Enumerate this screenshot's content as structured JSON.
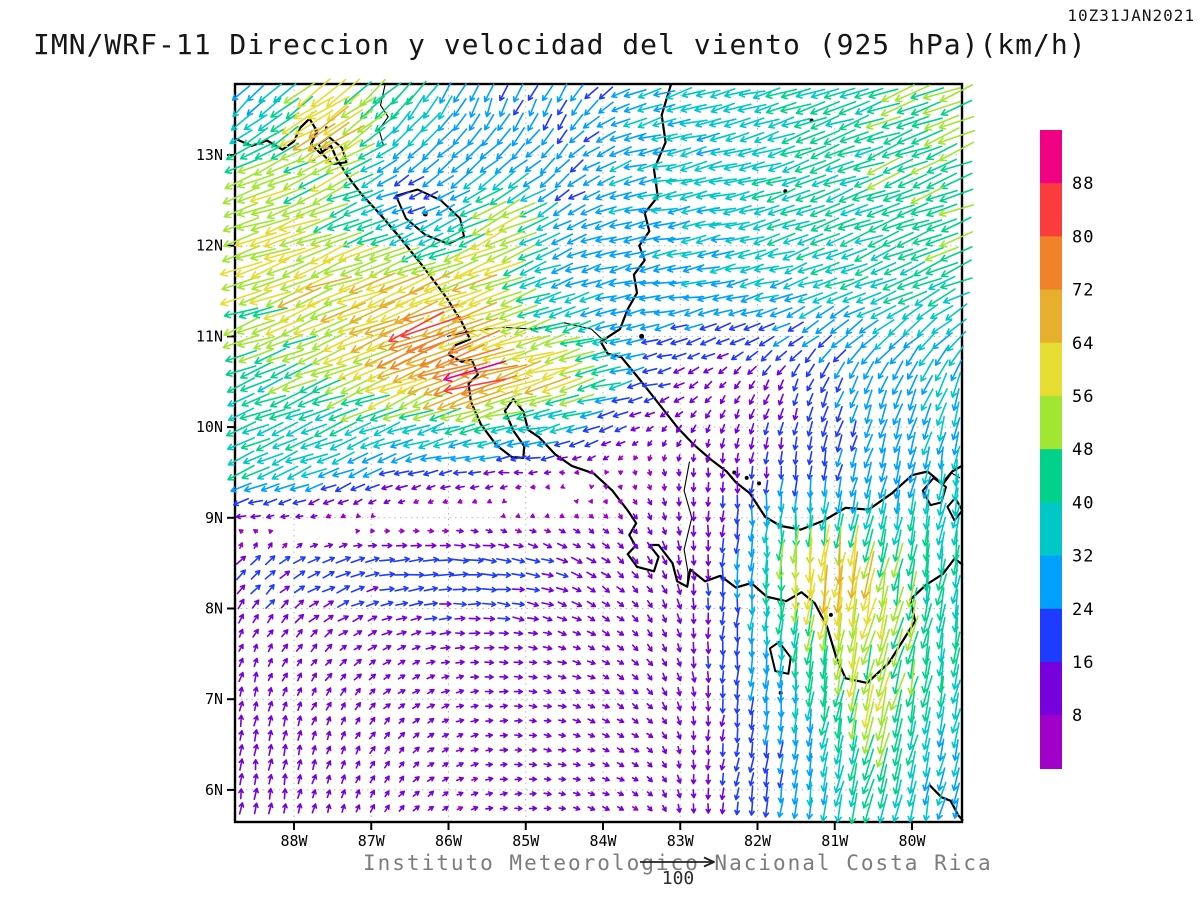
{
  "header": {
    "title": "IMN/WRF-11 Direccion y velocidad del viento (925 hPa)(km/h)",
    "timestamp": "10Z31JAN2021"
  },
  "footer": {
    "credit": "Instituto Meteorologico Nacional Costa Rica",
    "reference_arrow_label": "100",
    "reference_arrow_kmh": 100
  },
  "axes": {
    "lat_labels": [
      "13N",
      "12N",
      "11N",
      "10N",
      "9N",
      "8N",
      "7N",
      "6N"
    ],
    "lat_values": [
      13,
      12,
      11,
      10,
      9,
      8,
      7,
      6
    ],
    "lon_labels": [
      "88W",
      "87W",
      "86W",
      "85W",
      "84W",
      "83W",
      "82W",
      "81W",
      "80W"
    ],
    "lon_values": [
      88,
      87,
      86,
      85,
      84,
      83,
      82,
      81,
      80
    ]
  },
  "colorbar": {
    "position": "right",
    "labels": [
      "88",
      "80",
      "72",
      "64",
      "56",
      "48",
      "40",
      "32",
      "24",
      "16",
      "8"
    ],
    "colors_top_to_bottom": [
      "#F00082",
      "#FA3C3C",
      "#F08228",
      "#E6AF2D",
      "#E6DC32",
      "#A0E632",
      "#00D28C",
      "#00C8C8",
      "#00A0FF",
      "#1E3CFF",
      "#7800DC",
      "#A000C8"
    ]
  },
  "chart_data": {
    "type": "vector_field",
    "variable": "wind direction and speed",
    "model": "IMN/WRF-11",
    "level_hPa": 925,
    "units": "km/h",
    "valid_time": "10Z31JAN2021",
    "extent": {
      "lon_w": [
        88.8,
        79.3
      ],
      "lat_n": [
        5.6,
        13.8
      ]
    },
    "grid": {
      "lon_w": [
        88.5,
        87.5,
        86.5,
        85.5,
        84.5,
        83.5,
        82.5,
        81.5,
        80.5,
        79.5
      ],
      "lat_n": [
        13.5,
        12.5,
        11.5,
        10.5,
        9.5,
        8.5,
        7.5,
        6.5,
        5.5
      ],
      "u_kmh": [
        [
          -24,
          -48,
          -26,
          -10,
          -12,
          -30,
          -34,
          -38,
          -42,
          -46
        ],
        [
          -52,
          -44,
          -16,
          -34,
          -22,
          -32,
          -35,
          -38,
          -41,
          -44
        ],
        [
          -52,
          -58,
          -62,
          -56,
          -30,
          -27,
          -31,
          -33,
          -36,
          -38
        ],
        [
          -38,
          -46,
          -58,
          -66,
          -58,
          -20,
          -8,
          -7,
          -11,
          -13
        ],
        [
          -36,
          -28,
          -20,
          -16,
          -6,
          2,
          -1,
          -2,
          -7,
          -6
        ],
        [
          13,
          19,
          22,
          22,
          15,
          7,
          -1,
          -3,
          -11,
          -6
        ],
        [
          4,
          8,
          10,
          11,
          10,
          7,
          -1,
          -4,
          -13,
          -7
        ],
        [
          2,
          4,
          7,
          9,
          9,
          8,
          -2,
          -4,
          -12,
          -7
        ],
        [
          2,
          3,
          6,
          8,
          9,
          7,
          -2,
          -4,
          -10,
          -6
        ]
      ],
      "v_kmh": [
        [
          -24,
          -32,
          -30,
          -24,
          -22,
          -10,
          -8,
          -13,
          -16,
          -18
        ],
        [
          -18,
          -18,
          -6,
          -18,
          -14,
          -6,
          -8,
          -13,
          -15,
          -17
        ],
        [
          -18,
          -22,
          -24,
          -20,
          -9,
          -5,
          -6,
          -11,
          -15,
          -17
        ],
        [
          -15,
          -18,
          -24,
          -18,
          -16,
          -4,
          -8,
          -16,
          -24,
          -30
        ],
        [
          -15,
          -12,
          -5,
          -2,
          0,
          -6,
          -13,
          -18,
          -26,
          -34
        ],
        [
          13,
          7,
          2,
          -2,
          -6,
          -8,
          -17,
          -54,
          -52,
          -38
        ],
        [
          10,
          8,
          4,
          0,
          -3,
          -7,
          -17,
          -40,
          -50,
          -40
        ],
        [
          15,
          11,
          7,
          2,
          -2,
          -5,
          -15,
          -27,
          -44,
          -31
        ],
        [
          14,
          11,
          7,
          2,
          -1,
          -5,
          -14,
          -25,
          -40,
          -28
        ]
      ]
    },
    "hotspots": [
      {
        "lon_w": 85.7,
        "lat_n": 10.55,
        "boost_kmh": 26,
        "radius_deg": 0.3
      },
      {
        "lon_w": 86.35,
        "lat_n": 11.0,
        "boost_kmh": 20,
        "radius_deg": 0.3
      },
      {
        "lon_w": 85.25,
        "lat_n": 12.2,
        "boost_kmh": 16,
        "radius_deg": 0.4
      },
      {
        "lon_w": 87.6,
        "lat_n": 13.25,
        "boost_kmh": 14,
        "radius_deg": 0.35
      },
      {
        "lon_w": 80.95,
        "lat_n": 8.25,
        "boost_kmh": 16,
        "radius_deg": 0.45
      },
      {
        "lon_w": 80.55,
        "lat_n": 6.9,
        "boost_kmh": 8,
        "radius_deg": 0.5
      }
    ],
    "speed_colors": {
      "thresholds_kmh": [
        8,
        16,
        24,
        32,
        40,
        48,
        56,
        64,
        72,
        80,
        88
      ],
      "colors_low_to_high": [
        "#A000C8",
        "#7800DC",
        "#1E3CFF",
        "#00A0FF",
        "#00C8C8",
        "#00D28C",
        "#A0E632",
        "#E6DC32",
        "#E6AF2D",
        "#F08228",
        "#FA3C3C",
        "#F00082"
      ]
    }
  },
  "basemap": {
    "coastlines": [
      [
        [
          88.76,
          13.18
        ],
        [
          88.55,
          13.1
        ],
        [
          88.35,
          13.16
        ],
        [
          88.15,
          13.06
        ],
        [
          88.0,
          13.15
        ],
        [
          87.92,
          13.3
        ],
        [
          87.8,
          13.4
        ],
        [
          87.7,
          13.26
        ],
        [
          87.78,
          13.12
        ],
        [
          87.66,
          13.02
        ],
        [
          87.52,
          13.1
        ],
        [
          87.45,
          12.96
        ],
        [
          87.3,
          12.76
        ],
        [
          87.12,
          12.56
        ],
        [
          86.9,
          12.36
        ],
        [
          86.62,
          12.08
        ],
        [
          86.32,
          11.76
        ],
        [
          86.02,
          11.42
        ],
        [
          85.83,
          11.16
        ],
        [
          85.72,
          10.97
        ],
        [
          85.92,
          10.9
        ],
        [
          86.0,
          10.8
        ],
        [
          85.83,
          10.72
        ],
        [
          85.7,
          10.74
        ],
        [
          85.62,
          10.58
        ],
        [
          85.74,
          10.48
        ],
        [
          85.71,
          10.28
        ],
        [
          85.58,
          10.03
        ],
        [
          85.38,
          9.8
        ],
        [
          85.18,
          9.67
        ],
        [
          85.03,
          9.66
        ],
        [
          85.02,
          9.79
        ],
        [
          85.16,
          9.96
        ],
        [
          85.27,
          10.18
        ],
        [
          85.16,
          10.31
        ],
        [
          85.03,
          10.17
        ],
        [
          84.97,
          9.97
        ],
        [
          84.83,
          9.89
        ],
        [
          84.62,
          9.7
        ],
        [
          84.4,
          9.57
        ],
        [
          84.12,
          9.49
        ],
        [
          83.88,
          9.3
        ],
        [
          83.68,
          9.08
        ],
        [
          83.57,
          8.94
        ],
        [
          83.66,
          8.81
        ],
        [
          83.58,
          8.69
        ],
        [
          83.68,
          8.6
        ],
        [
          83.56,
          8.46
        ],
        [
          83.34,
          8.41
        ],
        [
          83.28,
          8.57
        ],
        [
          83.4,
          8.7
        ],
        [
          83.28,
          8.7
        ],
        [
          83.1,
          8.5
        ],
        [
          83.04,
          8.3
        ],
        [
          82.91,
          8.24
        ],
        [
          82.87,
          8.43
        ],
        [
          82.68,
          8.3
        ],
        [
          82.48,
          8.36
        ],
        [
          82.28,
          8.23
        ],
        [
          82.08,
          8.28
        ],
        [
          81.88,
          8.13
        ],
        [
          81.63,
          8.08
        ],
        [
          81.43,
          8.18
        ],
        [
          81.26,
          8.06
        ],
        [
          81.1,
          7.8
        ],
        [
          80.98,
          7.46
        ],
        [
          80.86,
          7.23
        ],
        [
          80.58,
          7.18
        ],
        [
          80.3,
          7.4
        ],
        [
          80.13,
          7.63
        ],
        [
          79.96,
          7.86
        ],
        [
          80.02,
          8.1
        ],
        [
          79.82,
          8.26
        ],
        [
          79.6,
          8.38
        ],
        [
          79.45,
          8.55
        ],
        [
          79.34,
          8.48
        ]
      ],
      [
        [
          83.12,
          13.78
        ],
        [
          83.24,
          13.44
        ],
        [
          83.19,
          13.14
        ],
        [
          83.34,
          12.84
        ],
        [
          83.29,
          12.54
        ],
        [
          83.46,
          12.36
        ],
        [
          83.4,
          12.16
        ],
        [
          83.53,
          12.0
        ],
        [
          83.46,
          11.84
        ],
        [
          83.6,
          11.68
        ],
        [
          83.56,
          11.48
        ],
        [
          83.68,
          11.3
        ],
        [
          83.78,
          11.08
        ],
        [
          84.03,
          10.94
        ],
        [
          83.94,
          10.81
        ],
        [
          83.76,
          10.77
        ],
        [
          83.53,
          10.53
        ],
        [
          83.28,
          10.26
        ],
        [
          83.03,
          9.99
        ],
        [
          82.83,
          9.81
        ],
        [
          82.6,
          9.64
        ],
        [
          82.4,
          9.51
        ],
        [
          82.28,
          9.39
        ],
        [
          82.1,
          9.27
        ],
        [
          81.9,
          9.01
        ],
        [
          81.7,
          8.91
        ],
        [
          81.44,
          8.87
        ],
        [
          81.14,
          8.97
        ],
        [
          80.86,
          9.11
        ],
        [
          80.56,
          9.09
        ],
        [
          80.26,
          9.27
        ],
        [
          80.0,
          9.47
        ],
        [
          79.8,
          9.51
        ],
        [
          79.6,
          9.37
        ],
        [
          79.48,
          9.51
        ],
        [
          79.34,
          9.58
        ]
      ],
      [
        [
          79.78,
          6.06
        ],
        [
          79.62,
          5.92
        ],
        [
          79.5,
          5.88
        ],
        [
          79.4,
          5.72
        ],
        [
          79.34,
          5.66
        ]
      ]
    ],
    "lakes": [
      [
        [
          87.68,
          13.12
        ],
        [
          87.55,
          13.2
        ],
        [
          87.38,
          13.08
        ],
        [
          87.32,
          12.92
        ],
        [
          87.5,
          12.9
        ],
        [
          87.62,
          13.0
        ]
      ],
      [
        [
          86.68,
          12.55
        ],
        [
          86.4,
          12.62
        ],
        [
          86.1,
          12.5
        ],
        [
          85.85,
          12.3
        ],
        [
          85.8,
          12.1
        ],
        [
          86.0,
          12.02
        ],
        [
          86.3,
          12.12
        ],
        [
          86.55,
          12.3
        ]
      ],
      [
        [
          81.84,
          7.56
        ],
        [
          81.72,
          7.63
        ],
        [
          81.57,
          7.46
        ],
        [
          81.6,
          7.28
        ],
        [
          81.77,
          7.31
        ]
      ],
      [
        [
          79.86,
          9.3
        ],
        [
          79.72,
          9.44
        ],
        [
          79.56,
          9.34
        ],
        [
          79.62,
          9.17
        ],
        [
          79.76,
          9.14
        ]
      ],
      [
        [
          79.54,
          9.12
        ],
        [
          79.44,
          9.22
        ],
        [
          79.35,
          9.08
        ],
        [
          79.45,
          8.97
        ]
      ]
    ],
    "borders": [
      [
        [
          86.82,
          13.78
        ],
        [
          86.88,
          13.55
        ],
        [
          86.78,
          13.42
        ],
        [
          86.9,
          13.28
        ],
        [
          86.84,
          13.1
        ]
      ],
      [
        [
          86.02,
          11.0
        ],
        [
          85.7,
          11.06
        ],
        [
          85.3,
          11.1
        ],
        [
          84.9,
          11.08
        ],
        [
          84.5,
          11.15
        ],
        [
          84.15,
          11.08
        ],
        [
          83.95,
          10.92
        ]
      ],
      [
        [
          82.88,
          9.62
        ],
        [
          82.95,
          9.3
        ],
        [
          82.85,
          9.0
        ],
        [
          82.95,
          8.65
        ],
        [
          82.9,
          8.4
        ],
        [
          82.91,
          8.24
        ]
      ],
      [
        [
          79.62,
          9.38
        ],
        [
          79.5,
          9.5
        ],
        [
          79.38,
          9.44
        ]
      ]
    ],
    "islands": [
      [
        86.3,
        12.35,
        2.5
      ],
      [
        87.72,
        13.28,
        2
      ],
      [
        87.58,
        13.3,
        1.5
      ],
      [
        81.3,
        13.38,
        2
      ],
      [
        81.64,
        12.6,
        2
      ],
      [
        83.5,
        11.0,
        2.5
      ],
      [
        82.3,
        9.5,
        2
      ],
      [
        82.14,
        9.44,
        2
      ],
      [
        81.98,
        9.38,
        2
      ],
      [
        81.7,
        7.07,
        2
      ],
      [
        81.05,
        7.93,
        2
      ]
    ]
  }
}
